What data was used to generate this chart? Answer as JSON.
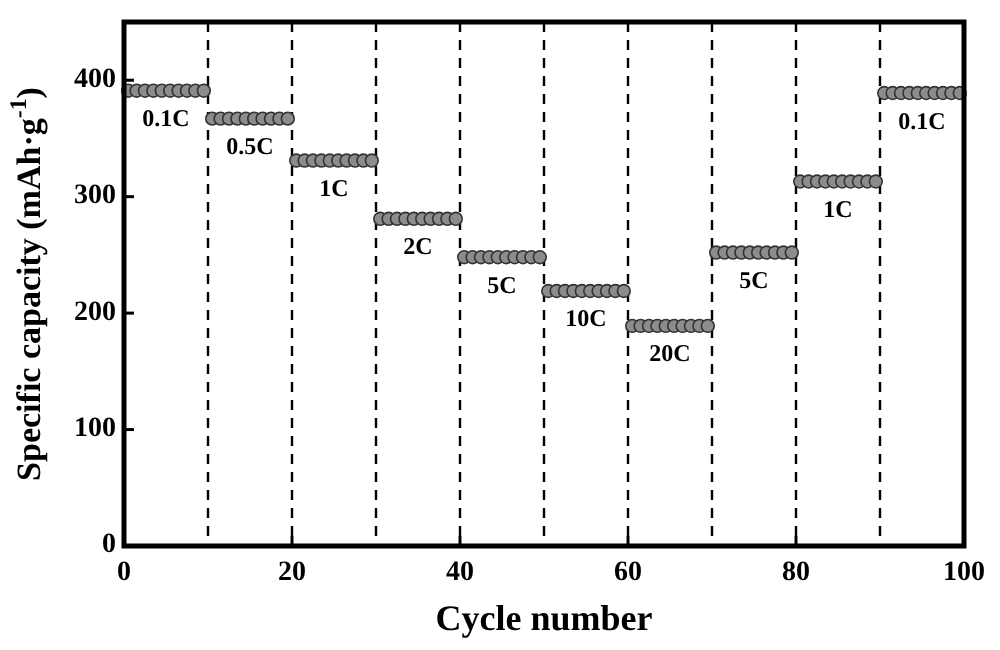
{
  "chart_data": {
    "type": "scatter",
    "xlabel": "Cycle number",
    "ylabel": "Specific capacity (mAh·g$^{-1}$)",
    "xlim": [
      0,
      100
    ],
    "ylim": [
      0,
      450
    ],
    "xticks": [
      0,
      20,
      40,
      60,
      80,
      100
    ],
    "yticks": [
      0,
      100,
      200,
      300,
      400
    ],
    "grid": false,
    "marker": "circle",
    "x": [
      0.5,
      1.5,
      2.5,
      3.5,
      4.5,
      5.5,
      6.5,
      7.5,
      8.5,
      9.5,
      10.5,
      11.5,
      12.5,
      13.5,
      14.5,
      15.5,
      16.5,
      17.5,
      18.5,
      19.5,
      20.5,
      21.5,
      22.5,
      23.5,
      24.5,
      25.5,
      26.5,
      27.5,
      28.5,
      29.5,
      30.5,
      31.5,
      32.5,
      33.5,
      34.5,
      35.5,
      36.5,
      37.5,
      38.5,
      39.5,
      40.5,
      41.5,
      42.5,
      43.5,
      44.5,
      45.5,
      46.5,
      47.5,
      48.5,
      49.5,
      50.5,
      51.5,
      52.5,
      53.5,
      54.5,
      55.5,
      56.5,
      57.5,
      58.5,
      59.5,
      60.5,
      61.5,
      62.5,
      63.5,
      64.5,
      65.5,
      66.5,
      67.5,
      68.5,
      69.5,
      70.5,
      71.5,
      72.5,
      73.5,
      74.5,
      75.5,
      76.5,
      77.5,
      78.5,
      79.5,
      80.5,
      81.5,
      82.5,
      83.5,
      84.5,
      85.5,
      86.5,
      87.5,
      88.5,
      89.5,
      90.5,
      91.5,
      92.5,
      93.5,
      94.5,
      95.5,
      96.5,
      97.5,
      98.5,
      99.5
    ],
    "series": [
      {
        "color": "#8c8c8c",
        "values": [
          391,
          391,
          391,
          391,
          391,
          391,
          391,
          391,
          391,
          391,
          367,
          367,
          367,
          367,
          367,
          367,
          367,
          367,
          367,
          367,
          331,
          331,
          331,
          331,
          331,
          331,
          331,
          331,
          331,
          331,
          281,
          281,
          281,
          281,
          281,
          281,
          281,
          281,
          281,
          281,
          248,
          248,
          248,
          248,
          248,
          248,
          248,
          248,
          248,
          248,
          219,
          219,
          219,
          219,
          219,
          219,
          219,
          219,
          219,
          219,
          189,
          189,
          189,
          189,
          189,
          189,
          189,
          189,
          189,
          189,
          252,
          252,
          252,
          252,
          252,
          252,
          252,
          252,
          252,
          252,
          313,
          313,
          313,
          313,
          313,
          313,
          313,
          313,
          313,
          313,
          389,
          389,
          389,
          389,
          389,
          389,
          389,
          389,
          389,
          389
        ]
      }
    ],
    "ref_lines": [
      {
        "axis": "x",
        "value": 10,
        "line_style": "dashed",
        "color": "#000000"
      },
      {
        "axis": "x",
        "value": 20,
        "line_style": "dashed",
        "color": "#000000"
      },
      {
        "axis": "x",
        "value": 30,
        "line_style": "dashed",
        "color": "#000000"
      },
      {
        "axis": "x",
        "value": 40,
        "line_style": "dashed",
        "color": "#000000"
      },
      {
        "axis": "x",
        "value": 50,
        "line_style": "dashed",
        "color": "#000000"
      },
      {
        "axis": "x",
        "value": 60,
        "line_style": "dashed",
        "color": "#000000"
      },
      {
        "axis": "x",
        "value": 70,
        "line_style": "dashed",
        "color": "#000000"
      },
      {
        "axis": "x",
        "value": 80,
        "line_style": "dashed",
        "color": "#000000"
      },
      {
        "axis": "x",
        "value": 90,
        "line_style": "dashed",
        "color": "#000000"
      }
    ],
    "annotations": [
      "0.1C",
      "0.5C",
      "1C",
      "2C",
      "5C",
      "10C",
      "20C",
      "5C",
      "1C",
      "0.1C"
    ]
  }
}
